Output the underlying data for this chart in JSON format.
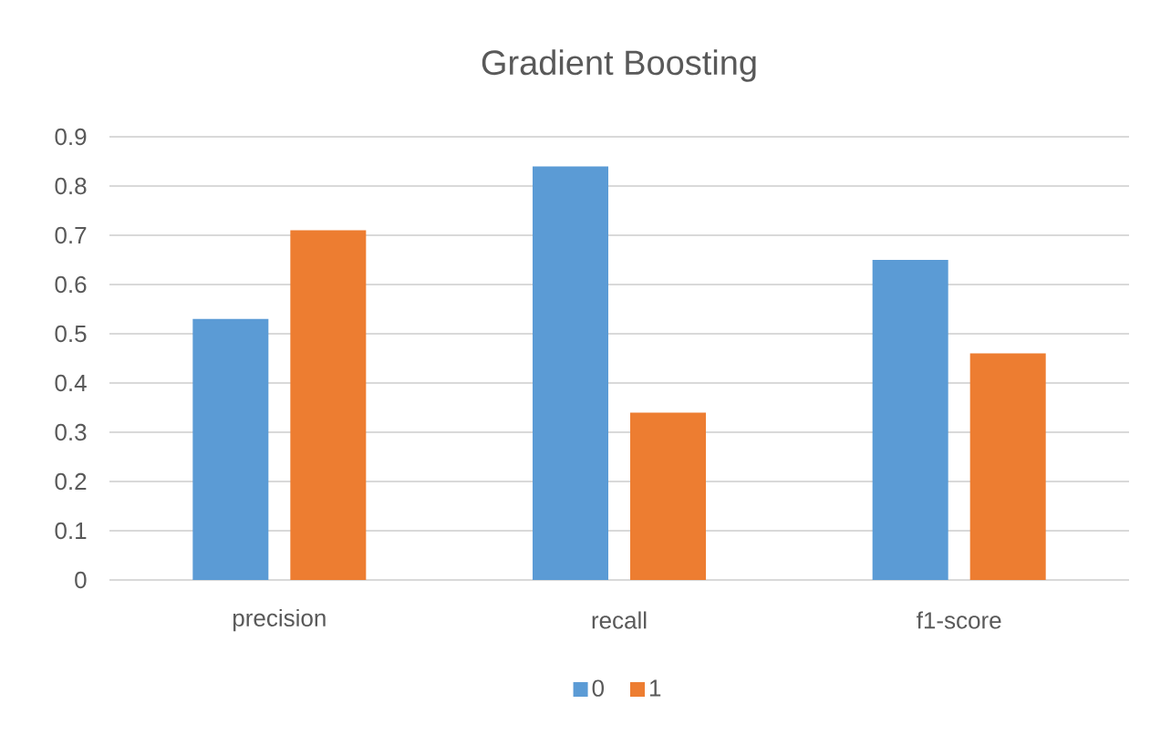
{
  "chart_data": {
    "type": "bar",
    "title": "Gradient Boosting",
    "categories": [
      "precision",
      "recall",
      "f1-score"
    ],
    "series": [
      {
        "name": "0",
        "color": "#5b9bd5",
        "values": [
          0.53,
          0.84,
          0.65
        ]
      },
      {
        "name": "1",
        "color": "#ed7d31",
        "values": [
          0.71,
          0.34,
          0.46
        ]
      }
    ],
    "ylim": [
      0,
      0.9
    ],
    "yticks": [
      0,
      0.1,
      0.2,
      0.3,
      0.4,
      0.5,
      0.6,
      0.7,
      0.8,
      0.9
    ],
    "grid": "y",
    "legend": "bottom"
  }
}
